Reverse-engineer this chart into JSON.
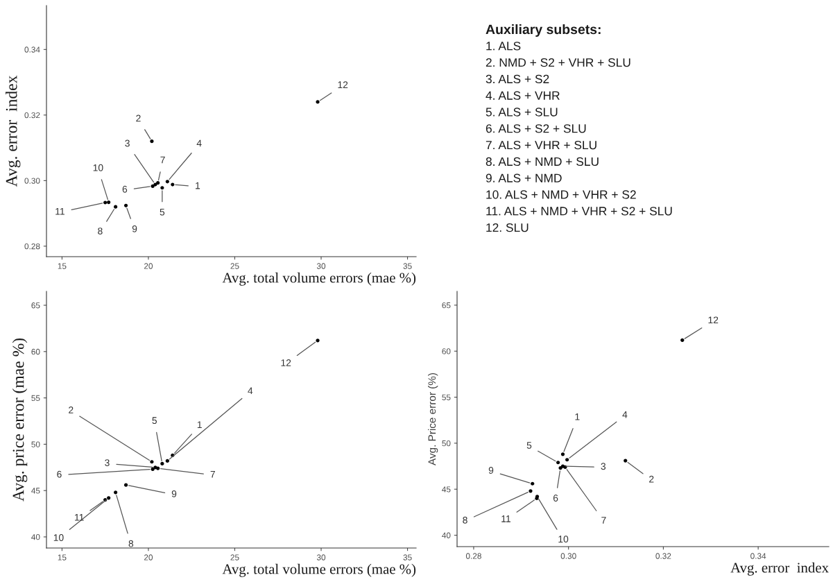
{
  "chart_data": [
    {
      "type": "scatter",
      "xlabel": "Avg. total volume errors (mae %)",
      "ylabel": "Avg. error  index",
      "xlim": [
        14.1,
        35.5
      ],
      "ylim": [
        0.2768,
        0.3534
      ],
      "xticks": [
        15,
        20,
        25,
        30,
        35
      ],
      "yticks": [
        0.28,
        {
          "value": 0.3,
          "label": "0.30"
        },
        0.32,
        0.34
      ],
      "grid": false,
      "marker": "circle",
      "series": [
        {
          "color": "#000000",
          "x": [
            21.4,
            20.2,
            20.4,
            21.1,
            20.8,
            20.25,
            20.55,
            18.1,
            18.7,
            17.7,
            17.5,
            29.8
          ],
          "values": [
            0.2988,
            0.312,
            0.2988,
            0.2997,
            0.2978,
            0.2983,
            0.2993,
            0.292,
            0.2924,
            0.2934,
            0.2933,
            0.324
          ]
        }
      ],
      "annotations": [
        {
          "text": "1",
          "x": 21.4,
          "y": 0.2988
        },
        {
          "text": "2",
          "x": 20.2,
          "y": 0.312
        },
        {
          "text": "3",
          "x": 20.4,
          "y": 0.2988
        },
        {
          "text": "4",
          "x": 21.1,
          "y": 0.2997
        },
        {
          "text": "5",
          "x": 20.8,
          "y": 0.2978
        },
        {
          "text": "6",
          "x": 20.25,
          "y": 0.2983
        },
        {
          "text": "7",
          "x": 20.55,
          "y": 0.2993
        },
        {
          "text": "8",
          "x": 18.1,
          "y": 0.292
        },
        {
          "text": "9",
          "x": 18.7,
          "y": 0.2924
        },
        {
          "text": "10",
          "x": 17.7,
          "y": 0.2934
        },
        {
          "text": "11",
          "x": 17.5,
          "y": 0.2933
        },
        {
          "text": "12",
          "x": 29.8,
          "y": 0.324
        }
      ]
    },
    {
      "type": "scatter",
      "xlabel": "Avg. total volume errors (mae %)",
      "ylabel": "Avg. price error (mae %)",
      "xlim": [
        14.1,
        35.5
      ],
      "ylim": [
        38.8,
        66.5
      ],
      "xticks": [
        15,
        20,
        25,
        30,
        35
      ],
      "yticks": [
        40,
        45,
        50,
        55,
        60,
        65
      ],
      "grid": false,
      "marker": "circle",
      "series": [
        {
          "color": "#000000",
          "x": [
            21.4,
            20.2,
            20.4,
            21.1,
            20.8,
            20.25,
            20.55,
            18.1,
            18.7,
            17.7,
            17.5,
            29.8
          ],
          "values": [
            48.8,
            48.1,
            47.5,
            48.2,
            47.9,
            47.3,
            47.4,
            44.8,
            45.6,
            44.2,
            44.0,
            61.2
          ]
        }
      ],
      "annotations": [
        {
          "text": "1",
          "x": 21.4,
          "y": 48.8
        },
        {
          "text": "2",
          "x": 20.2,
          "y": 48.1
        },
        {
          "text": "3",
          "x": 20.4,
          "y": 47.5
        },
        {
          "text": "4",
          "x": 21.1,
          "y": 48.2
        },
        {
          "text": "5",
          "x": 20.8,
          "y": 47.9
        },
        {
          "text": "6",
          "x": 20.25,
          "y": 47.3
        },
        {
          "text": "7",
          "x": 20.55,
          "y": 47.4
        },
        {
          "text": "8",
          "x": 18.1,
          "y": 44.8
        },
        {
          "text": "9",
          "x": 18.7,
          "y": 45.6
        },
        {
          "text": "10",
          "x": 17.7,
          "y": 44.2
        },
        {
          "text": "11",
          "x": 17.5,
          "y": 44.0
        },
        {
          "text": "12",
          "x": 29.8,
          "y": 61.2
        }
      ]
    },
    {
      "type": "scatter",
      "xlabel": "Avg. error  index",
      "ylabel": "Avg. Price error (%)",
      "xlim": [
        0.2765,
        0.3549
      ],
      "ylim": [
        38.76,
        66.5
      ],
      "xticks": [
        0.28,
        {
          "value": 0.3,
          "label": "0.30"
        },
        0.32,
        0.34
      ],
      "yticks": [
        40,
        45,
        50,
        55,
        60,
        65
      ],
      "grid": false,
      "marker": "circle",
      "series": [
        {
          "color": "#000000",
          "x": [
            0.2988,
            0.312,
            0.2988,
            0.2997,
            0.2978,
            0.2983,
            0.2993,
            0.292,
            0.2924,
            0.2934,
            0.2933,
            0.324
          ],
          "values": [
            48.8,
            48.1,
            47.5,
            48.2,
            47.9,
            47.3,
            47.4,
            44.8,
            45.6,
            44.2,
            44.0,
            61.2
          ]
        }
      ],
      "annotations": [
        {
          "text": "1",
          "x": 0.2988,
          "y": 48.8
        },
        {
          "text": "2",
          "x": 0.312,
          "y": 48.1
        },
        {
          "text": "3",
          "x": 0.2988,
          "y": 47.5
        },
        {
          "text": "4",
          "x": 0.2997,
          "y": 48.2
        },
        {
          "text": "5",
          "x": 0.2978,
          "y": 47.9
        },
        {
          "text": "6",
          "x": 0.2983,
          "y": 47.3
        },
        {
          "text": "7",
          "x": 0.2993,
          "y": 47.4
        },
        {
          "text": "8",
          "x": 0.292,
          "y": 44.8
        },
        {
          "text": "9",
          "x": 0.2924,
          "y": 45.6
        },
        {
          "text": "10",
          "x": 0.2934,
          "y": 44.2
        },
        {
          "text": "11",
          "x": 0.2933,
          "y": 44.0
        },
        {
          "text": "12",
          "x": 0.324,
          "y": 61.2
        }
      ]
    },
    {
      "type": "other",
      "title": "Auxiliary subsets:",
      "annotations": [
        "1. ALS",
        "2. NMD + S2 + VHR + SLU",
        "3. ALS + S2",
        "4. ALS + VHR",
        "5. ALS + SLU",
        "6. ALS + S2 + SLU",
        "7. ALS + VHR + SLU",
        "8. ALS + NMD + SLU",
        "9. ALS + NMD",
        "10. ALS + NMD + VHR + S2",
        "11. ALS + NMD + VHR + S2 + SLU",
        "12. SLU"
      ]
    }
  ]
}
